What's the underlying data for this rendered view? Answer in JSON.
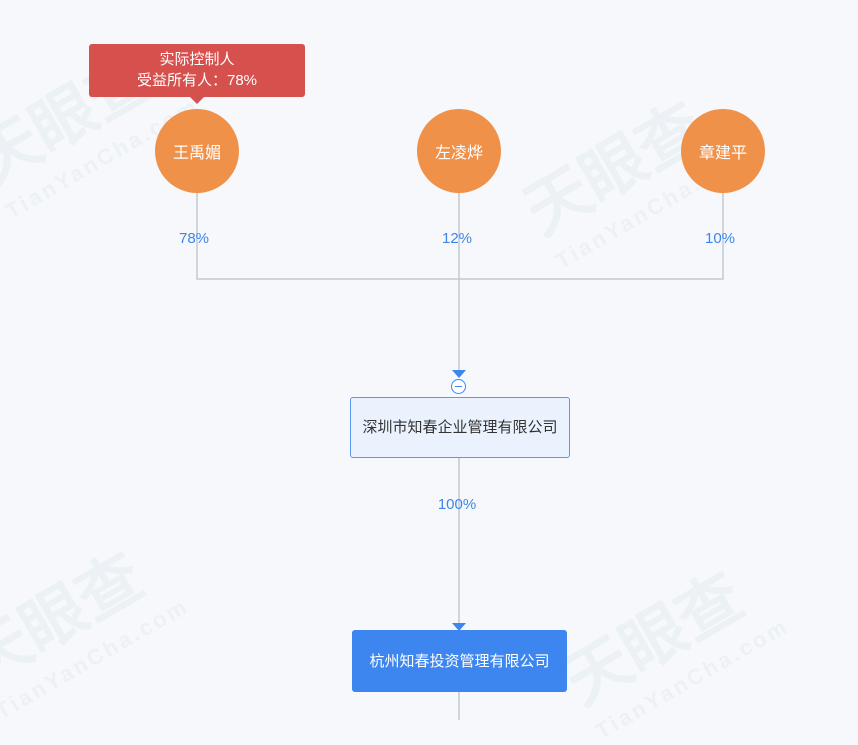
{
  "watermark": {
    "brand": "天眼查",
    "domain": "TianYanCha.com"
  },
  "tooltip": {
    "line1": "实际控制人",
    "line2": "受益所有人：78%"
  },
  "shareholders": [
    {
      "name": "王禹媚",
      "percent": "78%"
    },
    {
      "name": "左凌烨",
      "percent": "12%"
    },
    {
      "name": "章建平",
      "percent": "10%"
    }
  ],
  "parent_company": {
    "name": "深圳市知春企业管理有限公司",
    "percent": "100%"
  },
  "target_company": {
    "name": "杭州知春投资管理有限公司"
  },
  "colors": {
    "person": "#f0914a",
    "tooltip": "#d6504d",
    "line": "#c4c9d2",
    "accent": "#3d86f0"
  }
}
